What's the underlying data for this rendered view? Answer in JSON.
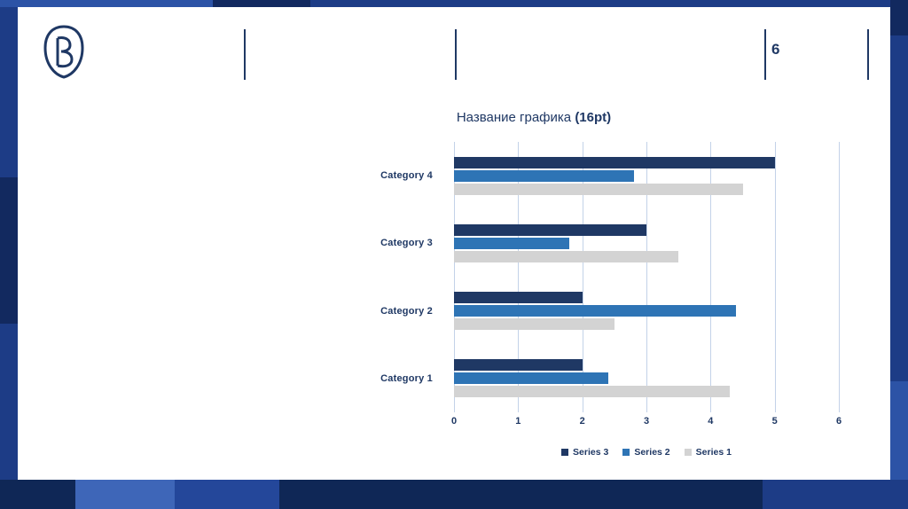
{
  "header": {
    "page_number": "6"
  },
  "chart_data": {
    "type": "bar",
    "orientation": "horizontal",
    "title": "Название графика (16pt)",
    "title_parts": {
      "main": "Название графика ",
      "emphasis": "(16pt)"
    },
    "categories": [
      "Category 1",
      "Category 2",
      "Category 3",
      "Category 4"
    ],
    "series": [
      {
        "name": "Series 3",
        "color": "#1F3864",
        "values": [
          2,
          2,
          3,
          5
        ]
      },
      {
        "name": "Series 2",
        "color": "#2E74B5",
        "values": [
          2.4,
          4.4,
          1.8,
          2.8
        ]
      },
      {
        "name": "Series 1",
        "color": "#D3D3D3",
        "values": [
          4.3,
          2.5,
          3.5,
          4.5
        ]
      }
    ],
    "xlim": [
      0,
      6
    ],
    "x_ticks": [
      0,
      1,
      2,
      3,
      4,
      5,
      6
    ],
    "grid": true,
    "legend": [
      "Series 3",
      "Series 2",
      "Series 1"
    ],
    "legend_position": "bottom"
  },
  "colors": {
    "text_navy": "#1F3864",
    "gridline": "#C3D2E8",
    "card_background": "#FFFFFF",
    "background_base": "#1D3C86",
    "background_dark": "#12295F",
    "background_light": "#3E66B8",
    "bottom_band": "#0F2756"
  }
}
